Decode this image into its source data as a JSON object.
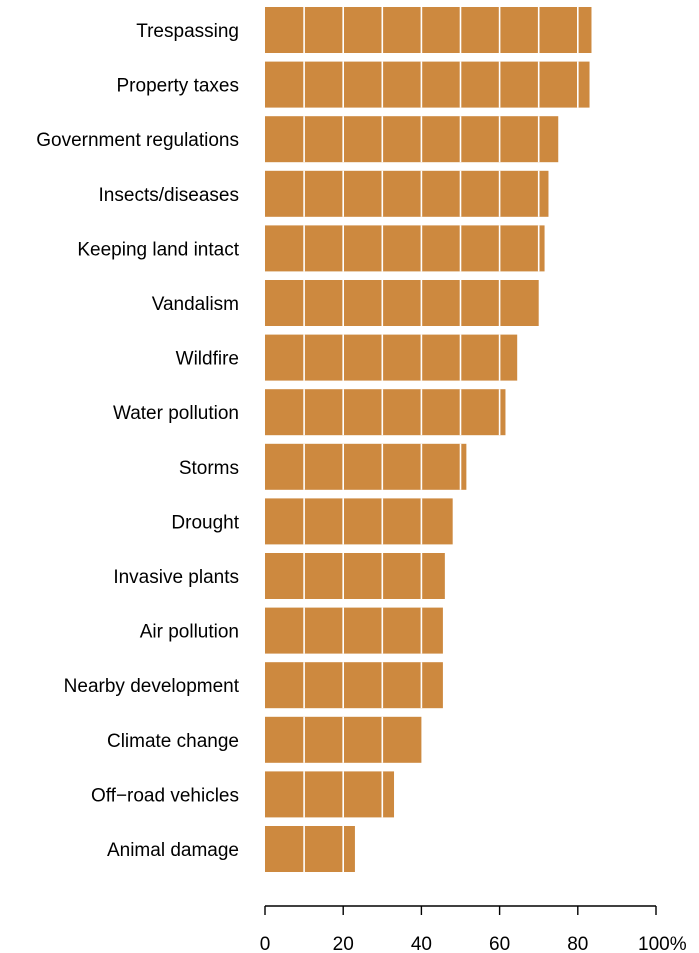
{
  "chart_data": {
    "type": "bar",
    "orientation": "horizontal",
    "categories": [
      "Trespassing",
      "Property taxes",
      "Government regulations",
      "Insects/diseases",
      "Keeping land intact",
      "Vandalism",
      "Wildfire",
      "Water pollution",
      "Storms",
      "Drought",
      "Invasive plants",
      "Air pollution",
      "Nearby development",
      "Climate change",
      "Off−road vehicles",
      "Animal damage"
    ],
    "values": [
      83.5,
      83,
      75,
      72.5,
      71.5,
      70,
      64.5,
      61.5,
      51.5,
      48,
      46,
      45.5,
      45.5,
      40,
      33,
      23
    ],
    "xlim": [
      0,
      100
    ],
    "xticks": [
      0,
      20,
      40,
      60,
      80,
      100
    ],
    "xtick_labels": [
      "0",
      "20",
      "40",
      "60",
      "80",
      "100%"
    ],
    "gridlines": [
      10,
      20,
      30,
      40,
      50,
      60,
      70,
      80
    ],
    "bar_color": "#cd893f",
    "grid_color": "#ffffff",
    "title": "",
    "xlabel": "",
    "ylabel": ""
  }
}
